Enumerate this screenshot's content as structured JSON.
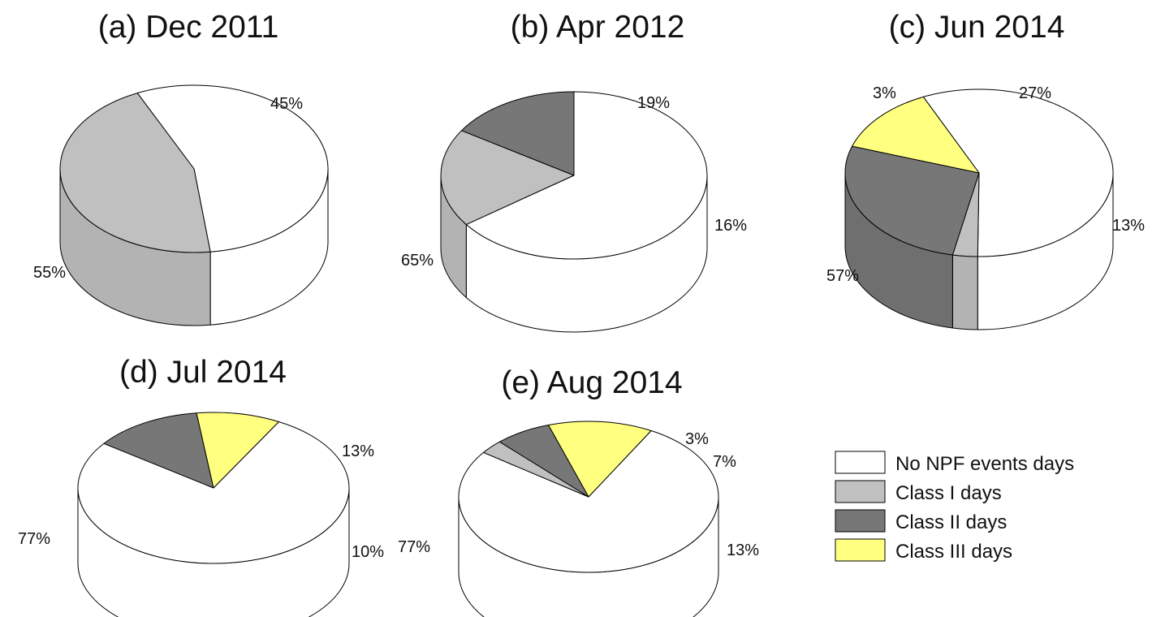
{
  "colors": {
    "No NPF events days": "#ffffff",
    "Class I days": "#c0c0c0",
    "Class II days": "#777777",
    "Class III days": "#ffff80",
    "outline": "#000000"
  },
  "legend": {
    "items": [
      {
        "label": "No NPF events days",
        "color": "#ffffff"
      },
      {
        "label": "Class I days",
        "color": "#c0c0c0"
      },
      {
        "label": "Class II days",
        "color": "#777777"
      },
      {
        "label": "Class III days",
        "color": "#ffff80"
      }
    ]
  },
  "chart_data": [
    {
      "type": "pie",
      "title": "(a) Dec 2011",
      "categories": [
        "No NPF events days",
        "Class I days"
      ],
      "values": [
        55,
        45
      ],
      "labels": [
        "55%",
        "45%"
      ]
    },
    {
      "type": "pie",
      "title": "(b) Apr 2012",
      "categories": [
        "No NPF events days",
        "Class I days",
        "Class II days"
      ],
      "values": [
        65,
        19,
        16
      ],
      "labels": [
        "65%",
        "19%",
        "16%"
      ]
    },
    {
      "type": "pie",
      "title": "(c) Jun 2014",
      "categories": [
        "No NPF events days",
        "Class I days",
        "Class II days",
        "Class III days"
      ],
      "values": [
        57,
        3,
        27,
        13
      ],
      "labels": [
        "57%",
        "3%",
        "27%",
        "13%"
      ]
    },
    {
      "type": "pie",
      "title": "(d) Jul 2014",
      "categories": [
        "No NPF events days",
        "Class II days",
        "Class III days"
      ],
      "values": [
        77,
        13,
        10
      ],
      "labels": [
        "77%",
        "13%",
        "10%"
      ]
    },
    {
      "type": "pie",
      "title": "(e) Aug 2014",
      "categories": [
        "No NPF events days",
        "Class I days",
        "Class II days",
        "Class III days"
      ],
      "values": [
        77,
        3,
        7,
        13
      ],
      "labels": [
        "77%",
        "3%",
        "7%",
        "13%"
      ]
    }
  ]
}
